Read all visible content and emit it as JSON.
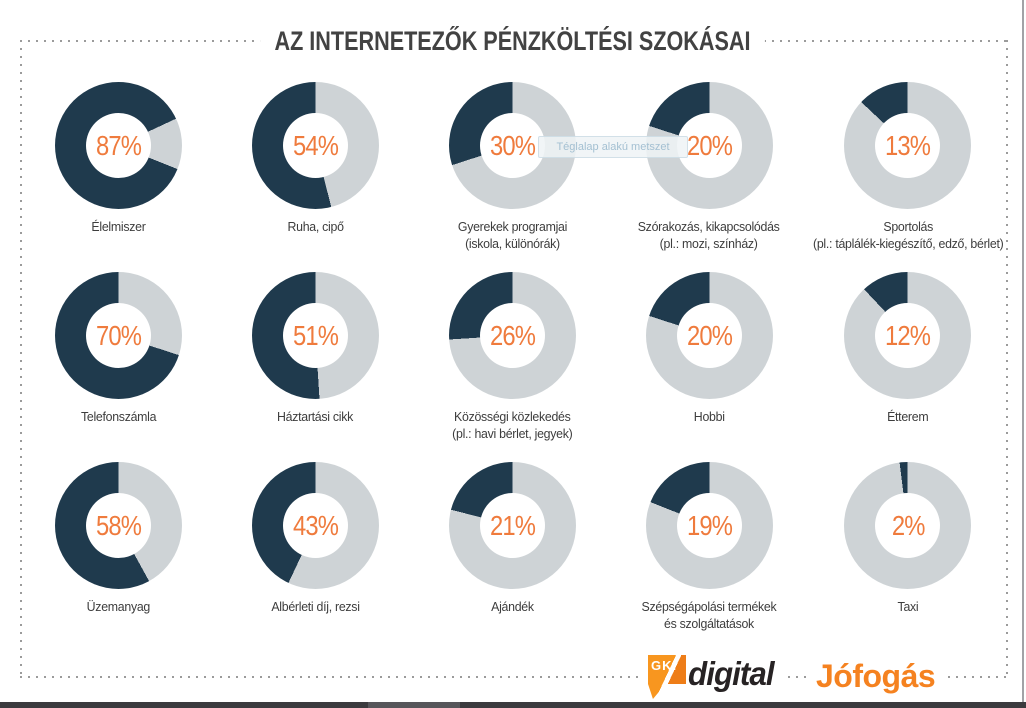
{
  "page": {
    "title": "AZ INTERNETEZŐK PÉNZKÖLTÉSI SZOKÁSAI",
    "tooltip_text": "Téglalap alakú metszet"
  },
  "footer": {
    "gki_mark_text": "GKI",
    "gki_name": "digital",
    "jofogas_name": "Jófogás"
  },
  "colors": {
    "filled": "#1f3a4d",
    "remainder": "#ced3d6",
    "percent_text": "#ef7b3d",
    "label_text": "#3d3d3d",
    "title_text": "#424242",
    "border_dots": "#9b9b9b",
    "gki_orange": "#f8961f",
    "jofogas_orange": "#f58220"
  },
  "chart_data": {
    "type": "pie",
    "title": "AZ INTERNETEZŐK PÉNZKÖLTÉSI SZOKÁSAI",
    "unit": "%",
    "layout": {
      "variant": "donut",
      "grid": "5 columns x 3 rows",
      "fill_direction": "counterclockwise-from-top",
      "value_position": "center",
      "legend": "none"
    },
    "items": [
      {
        "label_lines": [
          "Élelmiszer"
        ],
        "value": 87,
        "rotation": 65
      },
      {
        "label_lines": [
          "Ruha, cipő"
        ],
        "value": 54,
        "rotation": 0
      },
      {
        "label_lines": [
          "Gyerekek programjai",
          "(iskola, különórák)"
        ],
        "value": 30,
        "rotation": 0
      },
      {
        "label_lines": [
          "Szórakozás, kikapcsolódás",
          "(pl.: mozi, színház)"
        ],
        "value": 20,
        "rotation": 0
      },
      {
        "label_lines": [
          "Sportolás",
          "(pl.: táplálék-kiegészítő, edző, bérlet)"
        ],
        "value": 13,
        "rotation": 0
      },
      {
        "label_lines": [
          "Telefonszámla"
        ],
        "value": 70,
        "rotation": 0
      },
      {
        "label_lines": [
          "Háztartási cikk"
        ],
        "value": 51,
        "rotation": 0
      },
      {
        "label_lines": [
          "Közösségi közlekedés",
          "(pl.: havi bérlet, jegyek)"
        ],
        "value": 26,
        "rotation": 0
      },
      {
        "label_lines": [
          "Hobbi"
        ],
        "value": 20,
        "rotation": 0
      },
      {
        "label_lines": [
          "Étterem"
        ],
        "value": 12,
        "rotation": 0
      },
      {
        "label_lines": [
          "Üzemanyag"
        ],
        "value": 58,
        "rotation": 0
      },
      {
        "label_lines": [
          "Albérleti díj, rezsi"
        ],
        "value": 43,
        "rotation": 0
      },
      {
        "label_lines": [
          "Ajándék"
        ],
        "value": 21,
        "rotation": 0
      },
      {
        "label_lines": [
          "Szépségápolási termékek",
          "és szolgáltatások"
        ],
        "value": 19,
        "rotation": 0
      },
      {
        "label_lines": [
          "Taxi"
        ],
        "value": 2,
        "rotation": 0
      }
    ]
  }
}
